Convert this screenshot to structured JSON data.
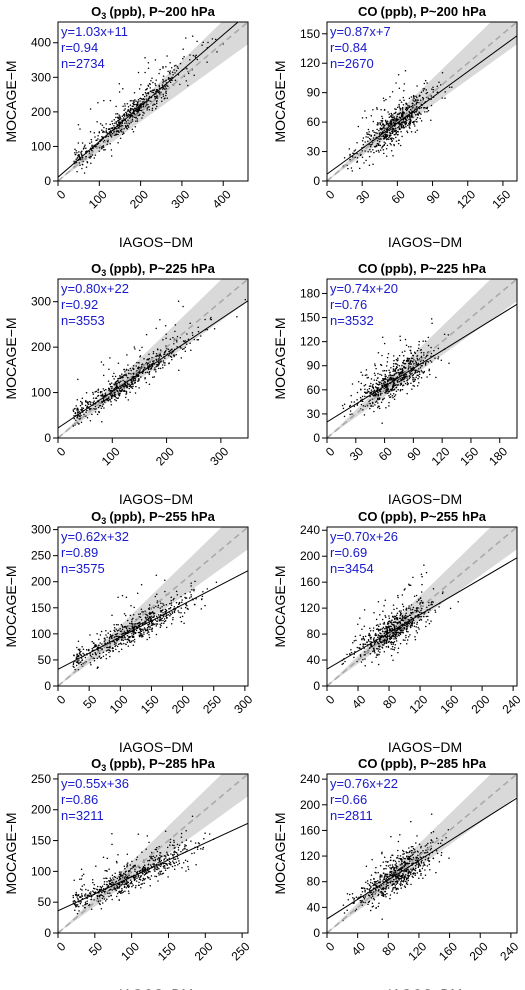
{
  "figure": {
    "xlabel": "IAGOS−DM",
    "ylabel": "MOCAGE−M",
    "colors": {
      "points": "#000000",
      "fit_line": "#000000",
      "identity_line": "#aaaaaa",
      "band": "#d9d9d9",
      "stats_text": "#1a1acc"
    }
  },
  "chart_data": [
    {
      "type": "scatter",
      "species": "O",
      "sub": "3",
      "unit": "(ppb), P~",
      "pressure": "200",
      "punit": "hPa",
      "xlim": [
        0,
        460
      ],
      "ylim": [
        0,
        460
      ],
      "xticks": [
        0,
        100,
        200,
        300,
        400
      ],
      "yticks": [
        0,
        100,
        200,
        300,
        400
      ],
      "slope": 1.03,
      "intercept": 11,
      "eq": "y=1.03x+11",
      "r_label": "r=0.94",
      "n_label": "n=2734"
    },
    {
      "type": "scatter",
      "species": "CO",
      "sub": "",
      "unit": "(ppb), P~",
      "pressure": "200",
      "punit": "hPa",
      "xlim": [
        0,
        162
      ],
      "ylim": [
        0,
        162
      ],
      "xticks": [
        0,
        30,
        60,
        90,
        120,
        150
      ],
      "yticks": [
        0,
        30,
        60,
        90,
        120,
        150
      ],
      "slope": 0.87,
      "intercept": 7,
      "eq": "y=0.87x+7",
      "r_label": "r=0.84",
      "n_label": "n=2670"
    },
    {
      "type": "scatter",
      "species": "O",
      "sub": "3",
      "unit": "(ppb), P~",
      "pressure": "225",
      "punit": "hPa",
      "xlim": [
        0,
        350
      ],
      "ylim": [
        0,
        350
      ],
      "xticks": [
        0,
        100,
        200,
        300
      ],
      "yticks": [
        0,
        100,
        200,
        300
      ],
      "slope": 0.8,
      "intercept": 22,
      "eq": "y=0.80x+22",
      "r_label": "r=0.92",
      "n_label": "n=3553"
    },
    {
      "type": "scatter",
      "species": "CO",
      "sub": "",
      "unit": "(ppb), P~",
      "pressure": "225",
      "punit": "hPa",
      "xlim": [
        0,
        198
      ],
      "ylim": [
        0,
        198
      ],
      "xticks": [
        0,
        30,
        60,
        90,
        120,
        150,
        180
      ],
      "yticks": [
        0,
        30,
        60,
        90,
        120,
        150,
        180
      ],
      "slope": 0.74,
      "intercept": 20,
      "eq": "y=0.74x+20",
      "r_label": "r=0.76",
      "n_label": "n=3532"
    },
    {
      "type": "scatter",
      "species": "O",
      "sub": "3",
      "unit": "(ppb), P~",
      "pressure": "255",
      "punit": "hPa",
      "xlim": [
        0,
        305
      ],
      "ylim": [
        0,
        305
      ],
      "xticks": [
        0,
        50,
        100,
        150,
        200,
        250,
        300
      ],
      "yticks": [
        0,
        50,
        100,
        150,
        200,
        250,
        300
      ],
      "slope": 0.62,
      "intercept": 32,
      "eq": "y=0.62x+32",
      "r_label": "r=0.89",
      "n_label": "n=3575"
    },
    {
      "type": "scatter",
      "species": "CO",
      "sub": "",
      "unit": "(ppb), P~",
      "pressure": "255",
      "punit": "hPa",
      "xlim": [
        0,
        245
      ],
      "ylim": [
        0,
        245
      ],
      "xticks": [
        0,
        40,
        80,
        120,
        160,
        200,
        240
      ],
      "yticks": [
        0,
        40,
        80,
        120,
        160,
        200,
        240
      ],
      "slope": 0.7,
      "intercept": 26,
      "eq": "y=0.70x+26",
      "r_label": "r=0.69",
      "n_label": "n=3454"
    },
    {
      "type": "scatter",
      "species": "O",
      "sub": "3",
      "unit": "(ppb), P~",
      "pressure": "285",
      "punit": "hPa",
      "xlim": [
        0,
        258
      ],
      "ylim": [
        0,
        258
      ],
      "xticks": [
        0,
        50,
        100,
        150,
        200,
        250
      ],
      "yticks": [
        0,
        50,
        100,
        150,
        200,
        250
      ],
      "slope": 0.55,
      "intercept": 36,
      "eq": "y=0.55x+36",
      "r_label": "r=0.86",
      "n_label": "n=3211"
    },
    {
      "type": "scatter",
      "species": "CO",
      "sub": "",
      "unit": "(ppb), P~",
      "pressure": "285",
      "punit": "hPa",
      "xlim": [
        0,
        248
      ],
      "ylim": [
        0,
        248
      ],
      "xticks": [
        0,
        40,
        80,
        120,
        160,
        200,
        240
      ],
      "yticks": [
        0,
        40,
        80,
        120,
        160,
        200,
        240
      ],
      "slope": 0.76,
      "intercept": 22,
      "eq": "y=0.76x+22",
      "r_label": "r=0.66",
      "n_label": "n=2811"
    }
  ]
}
